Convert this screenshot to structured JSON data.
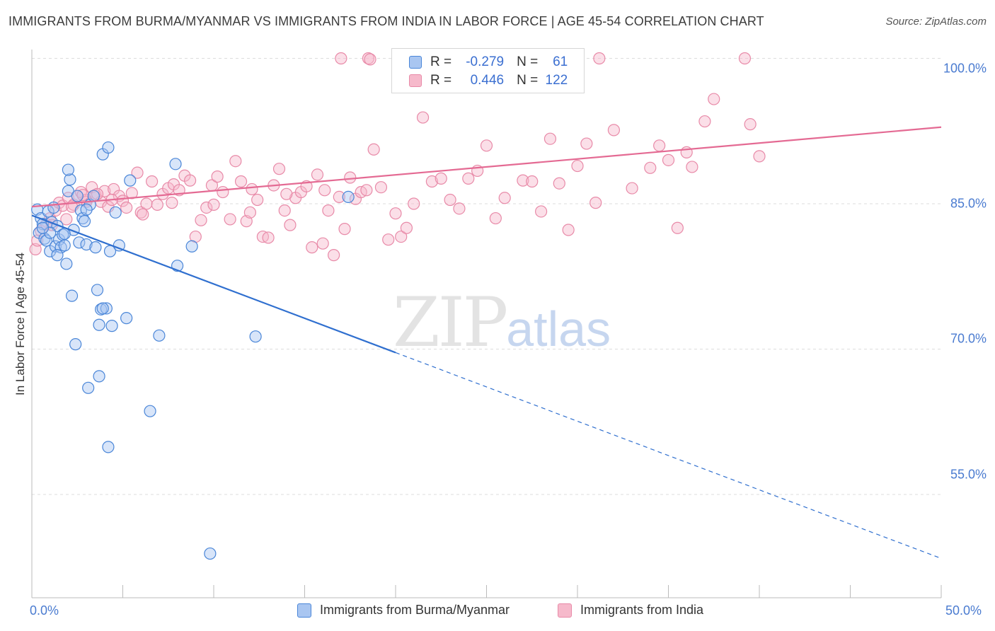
{
  "title": "IMMIGRANTS FROM BURMA/MYANMAR VS IMMIGRANTS FROM INDIA IN LABOR FORCE | AGE 45-54 CORRELATION CHART",
  "source": "Source: ZipAtlas.com",
  "watermark": {
    "zip": "ZIP",
    "atlas": "atlas"
  },
  "legend": {
    "rows": [
      {
        "r_label": "R =",
        "r_value": "-0.279",
        "n_label": "N =",
        "n_value": "61"
      },
      {
        "r_label": "R =",
        "r_value": "0.446",
        "n_label": "N =",
        "n_value": "122"
      }
    ]
  },
  "colors": {
    "burma_fill": "#a9c6f1",
    "burma_stroke": "#4a86d8",
    "burma_line": "#2f6fcf",
    "india_fill": "#f6b9cb",
    "india_stroke": "#e88aa8",
    "india_line": "#e46a93",
    "tick_text": "#4a7bd0",
    "grid": "#dddddd"
  },
  "chart_data": {
    "type": "scatter",
    "title": "IMMIGRANTS FROM BURMA/MYANMAR VS IMMIGRANTS FROM INDIA IN LABOR FORCE | AGE 45-54 CORRELATION CHART",
    "xlabel": "",
    "ylabel": "In Labor Force | Age 45-54",
    "xlim": [
      0,
      50
    ],
    "ylim": [
      40,
      101.5
    ],
    "x_tick_labels": [
      "0.0%",
      "50.0%"
    ],
    "y_ticks": [
      55,
      70,
      85,
      100
    ],
    "y_tick_labels": [
      "55.0%",
      "70.0%",
      "85.0%",
      "100.0%"
    ],
    "grid": true,
    "legend_placement": "bottom-center",
    "series": [
      {
        "name": "Immigrants from Burma/Myanmar",
        "r": -0.279,
        "n": 61,
        "trend": {
          "x0": 0,
          "y0": 83.8,
          "x1": 50,
          "y1": 48.4,
          "solid_until_x": 20
        },
        "points": [
          [
            0.3,
            84.4
          ],
          [
            0.5,
            83.5
          ],
          [
            0.6,
            82.9
          ],
          [
            0.9,
            84.2
          ],
          [
            1.2,
            84.6
          ],
          [
            0.4,
            82.0
          ],
          [
            0.7,
            81.4
          ],
          [
            1.1,
            83.1
          ],
          [
            1.4,
            82.7
          ],
          [
            0.8,
            81.2
          ],
          [
            1.0,
            80.1
          ],
          [
            1.3,
            80.6
          ],
          [
            1.5,
            81.3
          ],
          [
            1.6,
            80.5
          ],
          [
            1.7,
            81.8
          ],
          [
            1.8,
            80.7
          ],
          [
            1.9,
            78.8
          ],
          [
            2.0,
            86.3
          ],
          [
            2.1,
            87.5
          ],
          [
            2.3,
            82.3
          ],
          [
            2.5,
            85.8
          ],
          [
            2.6,
            81.0
          ],
          [
            2.7,
            84.3
          ],
          [
            2.8,
            83.5
          ],
          [
            3.0,
            80.8
          ],
          [
            3.2,
            84.9
          ],
          [
            3.4,
            85.8
          ],
          [
            3.5,
            80.5
          ],
          [
            3.6,
            76.1
          ],
          [
            3.7,
            72.5
          ],
          [
            3.8,
            74.1
          ],
          [
            3.9,
            90.1
          ],
          [
            4.2,
            90.8
          ],
          [
            4.3,
            80.1
          ],
          [
            4.4,
            72.4
          ],
          [
            4.6,
            84.1
          ],
          [
            4.8,
            80.7
          ],
          [
            5.2,
            73.2
          ],
          [
            5.4,
            87.4
          ],
          [
            4.1,
            74.2
          ],
          [
            2.2,
            75.5
          ],
          [
            2.4,
            70.5
          ],
          [
            3.1,
            66.0
          ],
          [
            3.7,
            67.2
          ],
          [
            4.2,
            59.9
          ],
          [
            6.5,
            63.6
          ],
          [
            7.0,
            71.4
          ],
          [
            7.9,
            89.1
          ],
          [
            8.0,
            78.6
          ],
          [
            8.8,
            80.6
          ],
          [
            9.8,
            48.9
          ],
          [
            12.3,
            71.3
          ],
          [
            17.4,
            85.7
          ],
          [
            2.0,
            88.5
          ],
          [
            1.0,
            82.0
          ],
          [
            0.6,
            82.5
          ],
          [
            1.4,
            79.7
          ],
          [
            3.0,
            84.4
          ],
          [
            2.9,
            83.2
          ],
          [
            1.8,
            81.9
          ],
          [
            3.9,
            74.2
          ]
        ]
      },
      {
        "name": "Immigrants from India",
        "r": 0.446,
        "n": 122,
        "trend": {
          "x0": 0,
          "y0": 84.7,
          "x1": 50,
          "y1": 92.9
        },
        "points": [
          [
            0.2,
            80.3
          ],
          [
            0.3,
            81.2
          ],
          [
            0.5,
            82.2
          ],
          [
            0.8,
            82.9
          ],
          [
            1.0,
            83.5
          ],
          [
            1.3,
            84.3
          ],
          [
            1.5,
            85.1
          ],
          [
            1.7,
            84.8
          ],
          [
            2.0,
            85.6
          ],
          [
            2.3,
            84.9
          ],
          [
            2.5,
            85.8
          ],
          [
            2.7,
            86.2
          ],
          [
            3.0,
            85.4
          ],
          [
            3.3,
            86.7
          ],
          [
            3.5,
            85.9
          ],
          [
            3.8,
            85.2
          ],
          [
            4.0,
            86.3
          ],
          [
            4.2,
            84.7
          ],
          [
            4.5,
            86.5
          ],
          [
            4.8,
            85.8
          ],
          [
            5.0,
            85.3
          ],
          [
            5.5,
            86.1
          ],
          [
            5.8,
            88.2
          ],
          [
            6.0,
            84.1
          ],
          [
            6.3,
            85.0
          ],
          [
            6.6,
            87.3
          ],
          [
            6.9,
            84.9
          ],
          [
            7.2,
            86.0
          ],
          [
            7.5,
            86.6
          ],
          [
            7.8,
            87.0
          ],
          [
            8.1,
            86.4
          ],
          [
            8.4,
            87.9
          ],
          [
            8.7,
            87.4
          ],
          [
            9.0,
            81.6
          ],
          [
            9.3,
            83.3
          ],
          [
            9.6,
            84.6
          ],
          [
            9.9,
            86.9
          ],
          [
            10.2,
            87.8
          ],
          [
            10.5,
            86.2
          ],
          [
            10.9,
            83.4
          ],
          [
            11.2,
            89.4
          ],
          [
            11.5,
            87.3
          ],
          [
            11.8,
            83.2
          ],
          [
            12.1,
            86.5
          ],
          [
            12.4,
            85.4
          ],
          [
            12.7,
            81.6
          ],
          [
            13.0,
            81.5
          ],
          [
            13.3,
            86.9
          ],
          [
            13.6,
            88.6
          ],
          [
            13.9,
            84.3
          ],
          [
            14.2,
            82.8
          ],
          [
            14.5,
            85.6
          ],
          [
            14.8,
            86.2
          ],
          [
            15.1,
            86.8
          ],
          [
            15.4,
            80.5
          ],
          [
            15.7,
            88.0
          ],
          [
            16.0,
            80.9
          ],
          [
            16.3,
            84.3
          ],
          [
            16.6,
            79.7
          ],
          [
            16.9,
            85.7
          ],
          [
            17.2,
            82.4
          ],
          [
            17.5,
            87.7
          ],
          [
            17.8,
            85.5
          ],
          [
            18.1,
            86.2
          ],
          [
            18.4,
            86.4
          ],
          [
            18.8,
            90.6
          ],
          [
            19.2,
            86.7
          ],
          [
            19.6,
            81.3
          ],
          [
            20.0,
            84.0
          ],
          [
            20.3,
            81.6
          ],
          [
            20.6,
            82.5
          ],
          [
            21.0,
            85.0
          ],
          [
            21.5,
            93.9
          ],
          [
            22.0,
            87.3
          ],
          [
            22.5,
            87.6
          ],
          [
            23.0,
            85.4
          ],
          [
            23.5,
            84.5
          ],
          [
            24.0,
            87.6
          ],
          [
            24.5,
            88.4
          ],
          [
            25.0,
            91.0
          ],
          [
            25.5,
            83.5
          ],
          [
            26.0,
            85.6
          ],
          [
            27.0,
            87.4
          ],
          [
            27.5,
            87.3
          ],
          [
            28.0,
            84.2
          ],
          [
            28.5,
            91.7
          ],
          [
            29.0,
            87.1
          ],
          [
            29.5,
            82.3
          ],
          [
            30.0,
            88.9
          ],
          [
            30.5,
            91.2
          ],
          [
            31.0,
            85.1
          ],
          [
            32.0,
            92.6
          ],
          [
            33.0,
            86.6
          ],
          [
            34.0,
            88.7
          ],
          [
            34.5,
            91.0
          ],
          [
            35.0,
            89.5
          ],
          [
            35.5,
            82.5
          ],
          [
            36.0,
            90.3
          ],
          [
            36.3,
            88.8
          ],
          [
            37.0,
            93.5
          ],
          [
            37.5,
            95.8
          ],
          [
            39.5,
            93.2
          ],
          [
            40.0,
            89.9
          ],
          [
            17.0,
            100.0
          ],
          [
            18.5,
            100.0
          ],
          [
            18.6,
            99.9
          ],
          [
            31.2,
            100.0
          ],
          [
            39.2,
            100.0
          ],
          [
            3.0,
            85.2
          ],
          [
            2.2,
            84.7
          ],
          [
            1.1,
            82.8
          ],
          [
            1.9,
            83.4
          ],
          [
            2.8,
            85.9
          ],
          [
            3.6,
            86.0
          ],
          [
            4.4,
            85.4
          ],
          [
            5.2,
            84.6
          ],
          [
            6.1,
            83.9
          ],
          [
            7.7,
            85.1
          ],
          [
            10.0,
            84.9
          ],
          [
            12.0,
            84.1
          ],
          [
            14.0,
            86.0
          ],
          [
            16.1,
            86.4
          ]
        ]
      }
    ]
  },
  "axis": {
    "y_title": "In Labor Force | Age 45-54",
    "x_min_label": "0.0%",
    "x_max_label": "50.0%",
    "y_labels": [
      "100.0%",
      "85.0%",
      "70.0%",
      "55.0%"
    ]
  },
  "bottom_legend": {
    "burma_label": "Immigrants from Burma/Myanmar",
    "india_label": "Immigrants from India"
  }
}
